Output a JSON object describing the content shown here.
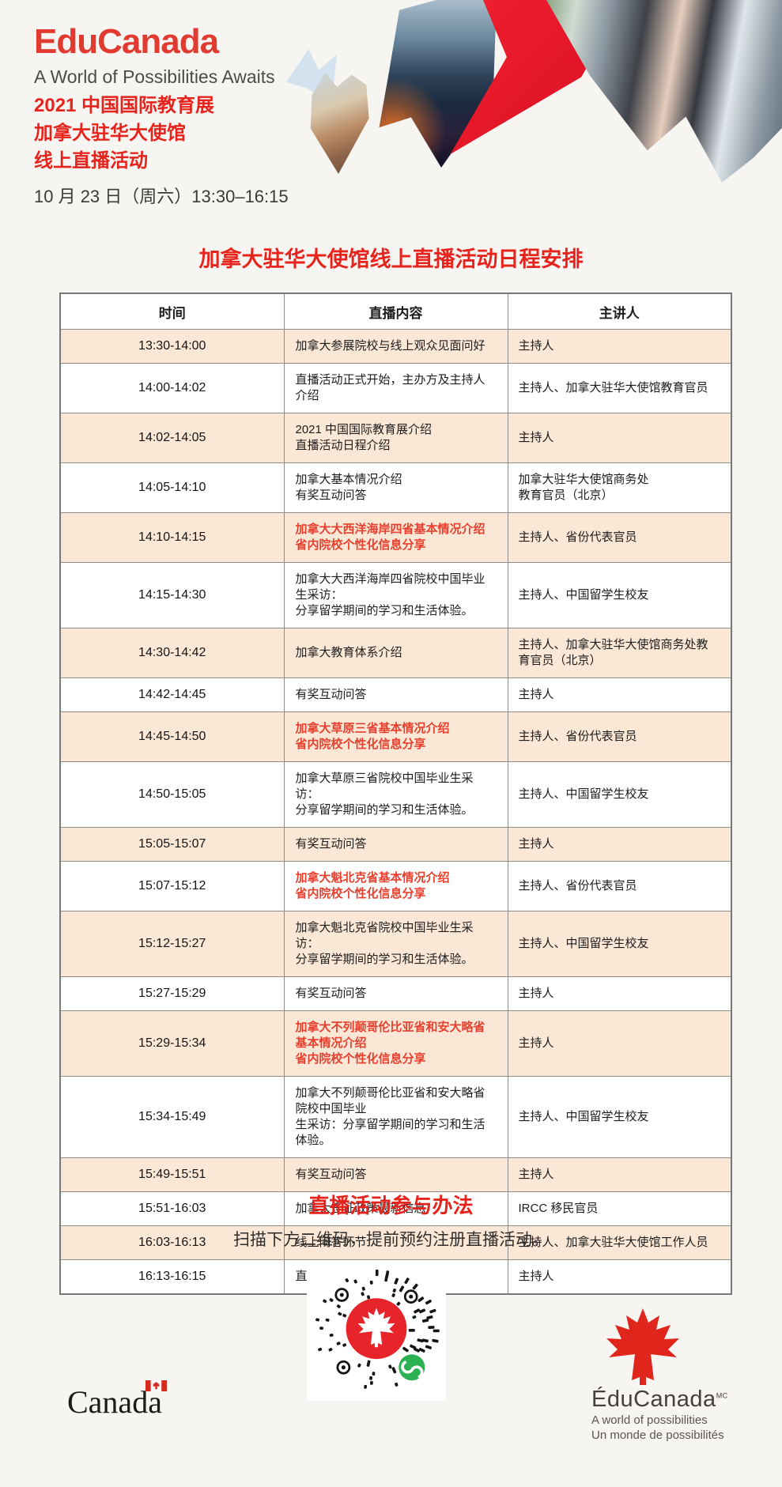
{
  "header": {
    "logo": "EduCanada",
    "tagline": "A World of Possibilities Awaits",
    "lines": [
      "2021 中国国际教育展",
      "加拿大驻华大使馆",
      "线上直播活动"
    ],
    "datetime": "10 月 23 日（周六）13:30–16:15"
  },
  "schedule": {
    "title": "加拿大驻华大使馆线上直播活动日程安排",
    "columns": [
      "时间",
      "直播内容",
      "主讲人"
    ],
    "rows": [
      {
        "time": "13:30-14:00",
        "content": [
          "加拿大参展院校与线上观众见面问好"
        ],
        "speaker": [
          "主持人"
        ]
      },
      {
        "time": "14:00-14:02",
        "content": [
          "直播活动正式开始，主办方及主持人介绍"
        ],
        "speaker": [
          "主持人、加拿大驻华大使馆教育官员"
        ]
      },
      {
        "time": "14:02-14:05",
        "content": [
          "2021 中国国际教育展介绍",
          "直播活动日程介绍"
        ],
        "speaker": [
          "主持人"
        ]
      },
      {
        "time": "14:05-14:10",
        "content": [
          "加拿大基本情况介绍",
          "有奖互动问答"
        ],
        "speaker": [
          "加拿大驻华大使馆商务处",
          "教育官员（北京）"
        ]
      },
      {
        "time": "14:10-14:15",
        "content": [
          "加拿大大西洋海岸四省基本情况介绍",
          "省内院校个性化信息分享"
        ],
        "content_red": true,
        "speaker": [
          "主持人、省份代表官员"
        ]
      },
      {
        "time": "14:15-14:30",
        "content": [
          "加拿大大西洋海岸四省院校中国毕业生采访：",
          "分享留学期间的学习和生活体验。"
        ],
        "speaker": [
          "主持人、中国留学生校友"
        ]
      },
      {
        "time": "14:30-14:42",
        "content": [
          "加拿大教育体系介绍"
        ],
        "speaker": [
          "主持人、加拿大驻华大使馆商务处教",
          "育官员（北京）"
        ]
      },
      {
        "time": "14:42-14:45",
        "content": [
          "有奖互动问答"
        ],
        "speaker": [
          "主持人"
        ]
      },
      {
        "time": "14:45-14:50",
        "content": [
          "加拿大草原三省基本情况介绍",
          "省内院校个性化信息分享"
        ],
        "content_red": true,
        "speaker": [
          "主持人、省份代表官员"
        ]
      },
      {
        "time": "14:50-15:05",
        "content": [
          "加拿大草原三省院校中国毕业生采访：",
          "分享留学期间的学习和生活体验。"
        ],
        "speaker": [
          "主持人、中国留学生校友"
        ]
      },
      {
        "time": "15:05-15:07",
        "content": [
          "有奖互动问答"
        ],
        "speaker": [
          "主持人"
        ]
      },
      {
        "time": "15:07-15:12",
        "content": [
          "加拿大魁北克省基本情况介绍",
          "省内院校个性化信息分享"
        ],
        "content_red": true,
        "speaker": [
          "主持人、省份代表官员"
        ]
      },
      {
        "time": "15:12-15:27",
        "content": [
          "加拿大魁北克省院校中国毕业生采访：",
          "分享留学期间的学习和生活体验。"
        ],
        "speaker": [
          "主持人、中国留学生校友"
        ]
      },
      {
        "time": "15:27-15:29",
        "content": [
          "有奖互动问答"
        ],
        "speaker": [
          "主持人"
        ]
      },
      {
        "time": "15:29-15:34",
        "content": [
          "加拿大不列颠哥伦比亚省和安大略省基本情况介绍",
          "省内院校个性化信息分享"
        ],
        "content_red": true,
        "speaker": [
          "主持人"
        ]
      },
      {
        "time": "15:34-15:49",
        "content": [
          "加拿大不列颠哥伦比亚省和安大略省院校中国毕业",
          "生采访：分享留学期间的学习和生活体验。"
        ],
        "speaker": [
          "主持人、中国留学生校友"
        ]
      },
      {
        "time": "15:49-15:51",
        "content": [
          "有奖互动问答"
        ],
        "speaker": [
          "主持人"
        ]
      },
      {
        "time": "15:51-16:03",
        "content": [
          "加拿大签证政策最新信息"
        ],
        "speaker": [
          "IRCC 移民官员"
        ]
      },
      {
        "time": "16:03-16:13",
        "content": [
          "线上问答环节"
        ],
        "speaker": [
          "主持人、加拿大驻华大使馆工作人员"
        ]
      },
      {
        "time": "16:13-16:15",
        "content": [
          "直播活动结束"
        ],
        "speaker": [
          "主持人"
        ]
      }
    ]
  },
  "participation": {
    "title": "直播活动参与办法",
    "instruction": "扫描下方二维码，提前预约注册直播活动。"
  },
  "footer": {
    "canada_wordmark": "Canada",
    "educanada": {
      "name": "ÉduCanada",
      "trademark": "MC",
      "tagline_en": "A world of possibilities",
      "tagline_fr": "Un monde de possibilités"
    }
  },
  "icons": {
    "qr": "wechat-qr-code-with-maple-leaf",
    "wechat": "wechat-mini-program-icon",
    "leaf": "maple-leaf-icon",
    "flag": "canada-flag-icon"
  },
  "colors": {
    "page_bg": "#f7f5f1",
    "brand_red": "#e13a30",
    "heading_red": "#e6231c",
    "table_red_text": "#e8402f",
    "row_shade": "#fbe7d6",
    "table_border": "#8c8c8c",
    "tagline_gray": "#4d4b47",
    "text_dark": "#2f2e2c",
    "wechat_green": "#2bb052",
    "collage_red": "#e8192c"
  }
}
